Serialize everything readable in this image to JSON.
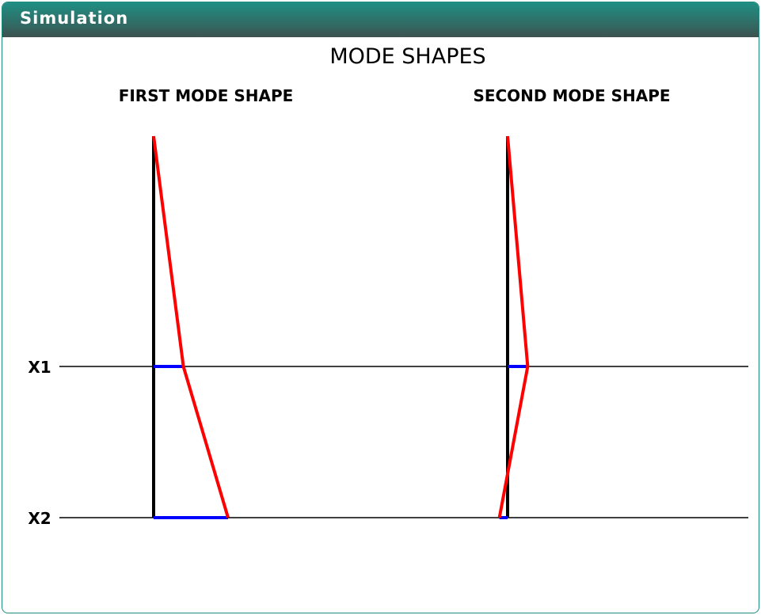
{
  "panel": {
    "title": "Simulation"
  },
  "diagram": {
    "title": "MODE SHAPES",
    "level_labels": [
      "X1",
      "X2"
    ],
    "modes": [
      {
        "title": "FIRST MODE SHAPE",
        "amplitudes": {
          "x1": 0.4,
          "x2": 1.0
        }
      },
      {
        "title": "SECOND MODE SHAPE",
        "amplitudes": {
          "x1": 0.27,
          "x2": -0.11
        }
      }
    ],
    "colors": {
      "column": "#000000",
      "deflected": "#ff0000",
      "displacement": "#0000ff",
      "level_line": "#000000"
    }
  }
}
